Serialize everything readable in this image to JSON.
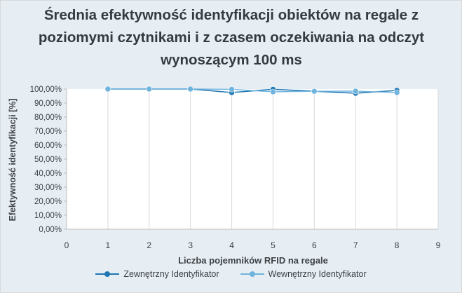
{
  "chart_data": {
    "type": "scatter",
    "title": "Średnia efektywność identyfikacji obiektów na regale z poziomymi czytnikami i z czasem oczekiwania na odczyt wynoszącym 100 ms",
    "xlabel": "Liczba pojemników RFID na regale",
    "ylabel": "Efektywność identyfikacji [%]",
    "xlim": [
      0,
      9
    ],
    "ylim": [
      0,
      100
    ],
    "x_ticks": [
      "0",
      "1",
      "2",
      "3",
      "4",
      "5",
      "6",
      "7",
      "8",
      "9"
    ],
    "y_ticks": [
      "0,00%",
      "10,00%",
      "20,00%",
      "30,00%",
      "40,00%",
      "50,00%",
      "60,00%",
      "70,00%",
      "80,00%",
      "90,00%",
      "100,00%"
    ],
    "grid": "vertical",
    "legend_position": "bottom",
    "series": [
      {
        "name": "Zewnętrzny Identyfikator",
        "color": "#1f77b4",
        "x": [
          1,
          2,
          3,
          4,
          5,
          6,
          7,
          8
        ],
        "y": [
          100,
          100,
          100,
          97.5,
          99.8,
          98.4,
          97.0,
          99.0
        ]
      },
      {
        "name": "Wewnętrzny Identyfikator",
        "color": "#6fb4dc",
        "x": [
          1,
          2,
          3,
          4,
          5,
          6,
          7,
          8
        ],
        "y": [
          100,
          100,
          100,
          99.8,
          98.0,
          98.4,
          98.5,
          97.5
        ]
      }
    ]
  }
}
